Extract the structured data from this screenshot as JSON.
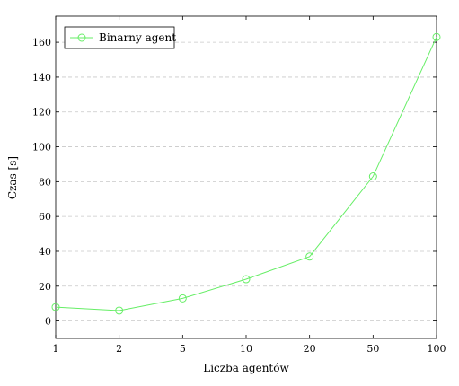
{
  "chart_data": {
    "type": "line",
    "categories": [
      "1",
      "2",
      "5",
      "10",
      "20",
      "50",
      "100"
    ],
    "series": [
      {
        "name": "Binarny agent",
        "values": [
          8,
          6,
          13,
          24,
          37,
          83,
          163
        ]
      }
    ],
    "xlabel": "Liczba agentów",
    "ylabel": "Czas [s]",
    "ylim": [
      -10,
      175
    ],
    "yticks": [
      0,
      20,
      40,
      60,
      80,
      100,
      120,
      140,
      160
    ],
    "grid": "horizontal dashed",
    "legend_position": "top-left",
    "series_color": "#66ee66"
  }
}
